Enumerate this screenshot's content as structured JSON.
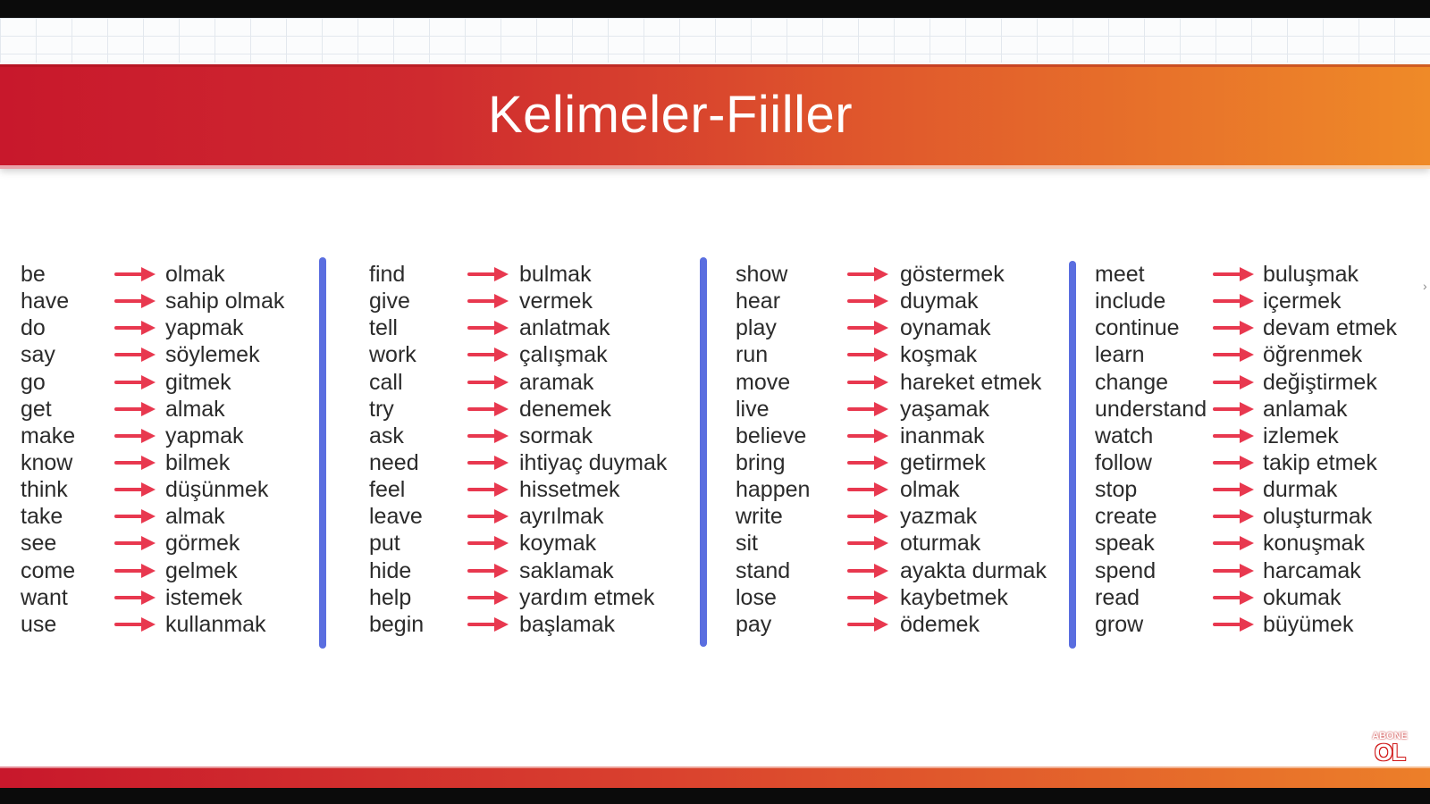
{
  "title": "Kelimeler-Fiiller",
  "colors": {
    "arrow": "#e8384f",
    "divider": "#5a6ee0",
    "banner_start": "#c8182c",
    "banner_end": "#ef8a28"
  },
  "columns": [
    {
      "pairs": [
        {
          "en": "be",
          "tr": "olmak"
        },
        {
          "en": "have",
          "tr": "sahip olmak"
        },
        {
          "en": "do",
          "tr": "yapmak"
        },
        {
          "en": "say",
          "tr": "söylemek"
        },
        {
          "en": "go",
          "tr": "gitmek"
        },
        {
          "en": "get",
          "tr": "almak"
        },
        {
          "en": "make",
          "tr": "yapmak"
        },
        {
          "en": "know",
          "tr": "bilmek"
        },
        {
          "en": "think",
          "tr": "düşünmek"
        },
        {
          "en": "take",
          "tr": "almak"
        },
        {
          "en": "see",
          "tr": "görmek"
        },
        {
          "en": "come",
          "tr": "gelmek"
        },
        {
          "en": "want",
          "tr": "istemek"
        },
        {
          "en": "use",
          "tr": "kullanmak"
        }
      ]
    },
    {
      "pairs": [
        {
          "en": "find",
          "tr": "bulmak"
        },
        {
          "en": "give",
          "tr": "vermek"
        },
        {
          "en": "tell",
          "tr": "anlatmak"
        },
        {
          "en": "work",
          "tr": "çalışmak"
        },
        {
          "en": "call",
          "tr": "aramak"
        },
        {
          "en": "try",
          "tr": "denemek"
        },
        {
          "en": "ask",
          "tr": "sormak"
        },
        {
          "en": "need",
          "tr": "ihtiyaç duymak"
        },
        {
          "en": "feel",
          "tr": "hissetmek"
        },
        {
          "en": "leave",
          "tr": "ayrılmak"
        },
        {
          "en": "put",
          "tr": "koymak"
        },
        {
          "en": "hide",
          "tr": "saklamak"
        },
        {
          "en": "help",
          "tr": "yardım etmek"
        },
        {
          "en": "begin",
          "tr": "başlamak"
        }
      ]
    },
    {
      "pairs": [
        {
          "en": "show",
          "tr": "göstermek"
        },
        {
          "en": "hear",
          "tr": "duymak"
        },
        {
          "en": "play",
          "tr": "oynamak"
        },
        {
          "en": "run",
          "tr": "koşmak"
        },
        {
          "en": "move",
          "tr": "hareket etmek"
        },
        {
          "en": "live",
          "tr": "yaşamak"
        },
        {
          "en": "believe",
          "tr": "inanmak"
        },
        {
          "en": "bring",
          "tr": "getirmek"
        },
        {
          "en": "happen",
          "tr": "olmak"
        },
        {
          "en": "write",
          "tr": "yazmak"
        },
        {
          "en": "sit",
          "tr": "oturmak"
        },
        {
          "en": "stand",
          "tr": "ayakta durmak"
        },
        {
          "en": "lose",
          "tr": "kaybetmek"
        },
        {
          "en": "pay",
          "tr": "ödemek"
        }
      ]
    },
    {
      "pairs": [
        {
          "en": "meet",
          "tr": "buluşmak"
        },
        {
          "en": "include",
          "tr": "içermek"
        },
        {
          "en": "continue",
          "tr": "devam etmek"
        },
        {
          "en": "learn",
          "tr": "öğrenmek"
        },
        {
          "en": "change",
          "tr": "değiştirmek"
        },
        {
          "en": "understand",
          "tr": "anlamak"
        },
        {
          "en": "watch",
          "tr": "izlemek"
        },
        {
          "en": "follow",
          "tr": "takip etmek"
        },
        {
          "en": "stop",
          "tr": "durmak"
        },
        {
          "en": "create",
          "tr": "oluşturmak"
        },
        {
          "en": "speak",
          "tr": "konuşmak"
        },
        {
          "en": "spend",
          "tr": "harcamak"
        },
        {
          "en": "read",
          "tr": "okumak"
        },
        {
          "en": "grow",
          "tr": "büyümek"
        }
      ]
    }
  ],
  "subscribe_badge": {
    "top": "ABONE",
    "bottom": "OL"
  }
}
